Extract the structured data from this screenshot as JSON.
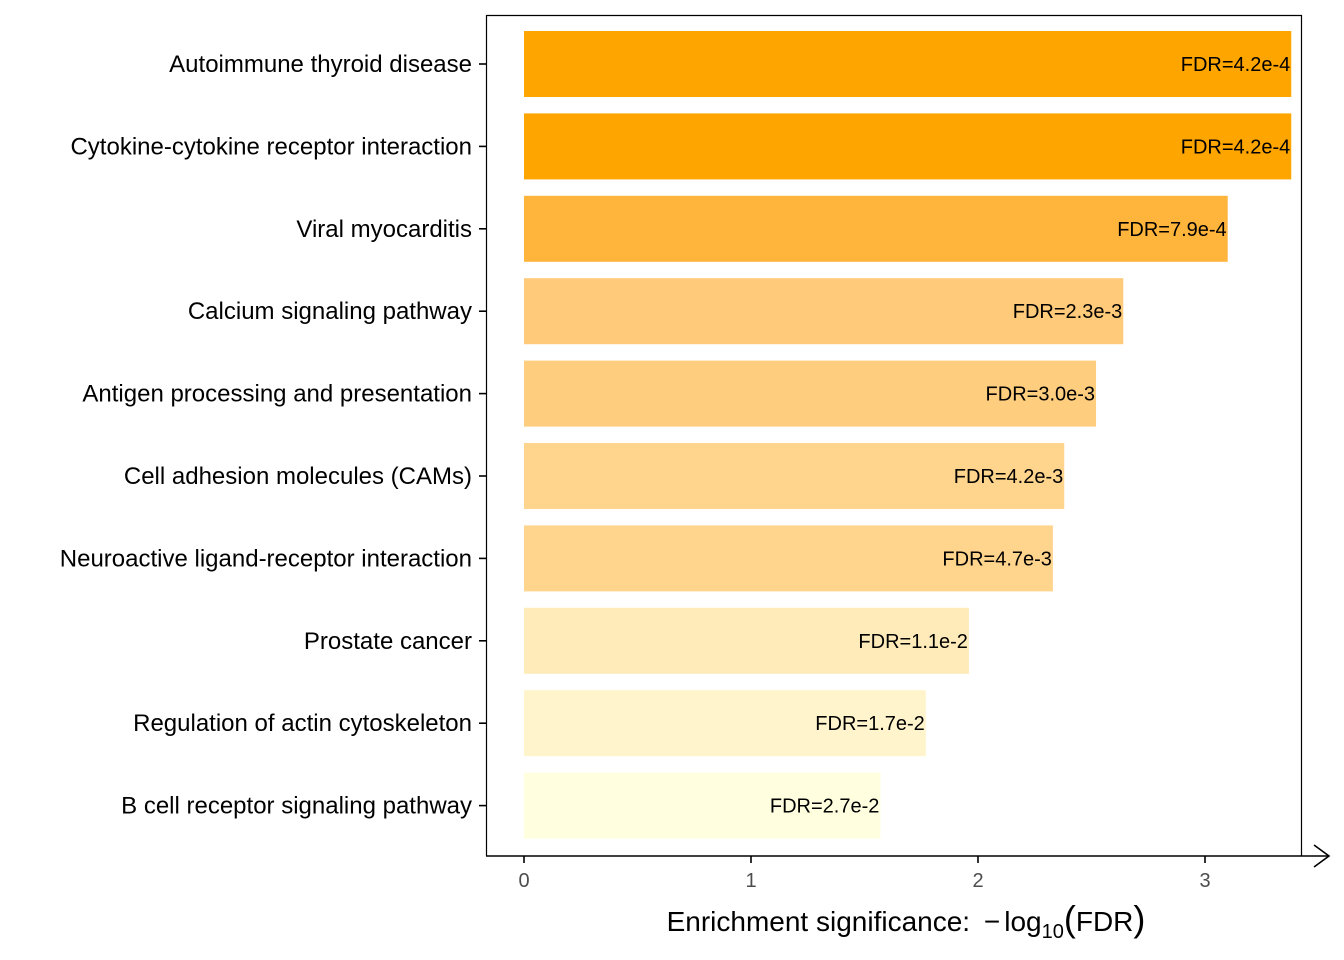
{
  "chart_data": {
    "type": "bar",
    "orientation": "horizontal",
    "categories": [
      "Autoimmune thyroid disease",
      "Cytokine-cytokine receptor interaction",
      "Viral myocarditis",
      "Calcium signaling pathway",
      "Antigen processing and presentation",
      "Cell adhesion molecules (CAMs)",
      "Neuroactive ligand-receptor interaction",
      "Prostate cancer",
      "Regulation of actin cytoskeleton",
      "B cell receptor signaling pathway"
    ],
    "values": [
      3.38,
      3.38,
      3.1,
      2.64,
      2.52,
      2.38,
      2.33,
      1.96,
      1.77,
      1.57
    ],
    "bar_labels": [
      "FDR=4.2e-4",
      "FDR=4.2e-4",
      "FDR=7.9e-4",
      "FDR=2.3e-3",
      "FDR=3.0e-3",
      "FDR=4.2e-3",
      "FDR=4.7e-3",
      "FDR=1.1e-2",
      "FDR=1.7e-2",
      "FDR=2.7e-2"
    ],
    "colors": [
      "#FFA500",
      "#FFA500",
      "#FFB43C",
      "#FFCA79",
      "#FFCD7E",
      "#FFD48D",
      "#FFD48D",
      "#FFEBB9",
      "#FFF4CB",
      "#FFFFE0"
    ],
    "x_ticks": [
      "0",
      "1",
      "2",
      "3"
    ],
    "xlim": [
      0,
      3.55
    ],
    "xlabel_prefix": "Enrichment significance: ",
    "xlabel_minus": "−",
    "xlabel_log": "log",
    "xlabel_sub": "10",
    "xlabel_arg": "FDR",
    "xlabel_open": "(",
    "xlabel_close": ")",
    "grid": false
  }
}
